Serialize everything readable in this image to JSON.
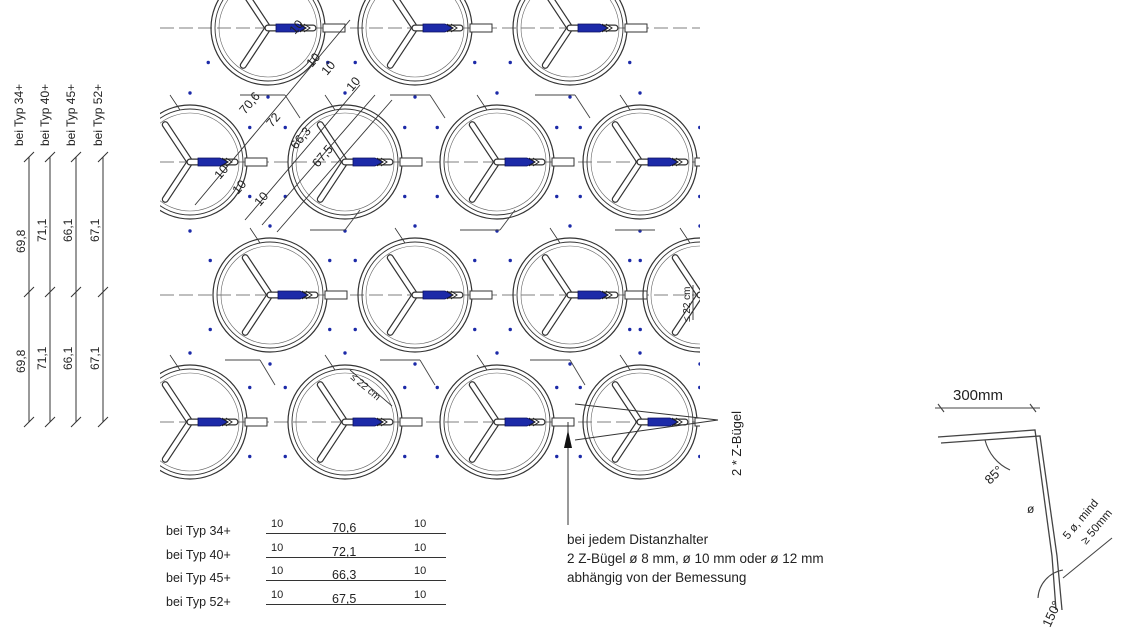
{
  "left_dims": {
    "types": [
      "bei Typ 34+",
      "bei Typ 40+",
      "bei Typ 45+",
      "bei Typ 52+"
    ],
    "upper": [
      "69,8",
      "71,1",
      "66,1",
      "67,1"
    ],
    "lower": [
      "69,8",
      "71,1",
      "66,1",
      "67,1"
    ]
  },
  "plan_labels": {
    "d10_a": "10",
    "d10_b": "10",
    "d10_c": "10",
    "d10_d": "10",
    "d10_e": "10",
    "d10_f": "10",
    "d10_g": "10",
    "v706": "70,6",
    "v72": "72",
    "v663": "66,3",
    "v675": "67,5",
    "s22_right": "≤ 22 cm",
    "s22_mid": "≤ 22 cm",
    "zbuegel": "2 * Z-Bügel"
  },
  "bottom_dims": [
    {
      "type": "bei Typ 34+",
      "a": "10",
      "b": "70,6",
      "c": "10"
    },
    {
      "type": "bei Typ 40+",
      "a": "10",
      "b": "72,1",
      "c": "10"
    },
    {
      "type": "bei Typ 45+",
      "a": "10",
      "b": "66,3",
      "c": "10"
    },
    {
      "type": "bei Typ 52+",
      "a": "10",
      "b": "67,5",
      "c": "10"
    }
  ],
  "note": {
    "line1": "bei jedem Distanzhalter",
    "line2": "2 Z-Bügel  ø 8 mm,  ø 10 mm oder ø 12 mm",
    "line3": "abhängig von der Bemessung"
  },
  "detail": {
    "width": "300mm",
    "angle_top": "85°",
    "dia": "ø",
    "min": "5 ø, mind",
    "min2": "≥ 50mm",
    "angle_bottom": "150°"
  }
}
